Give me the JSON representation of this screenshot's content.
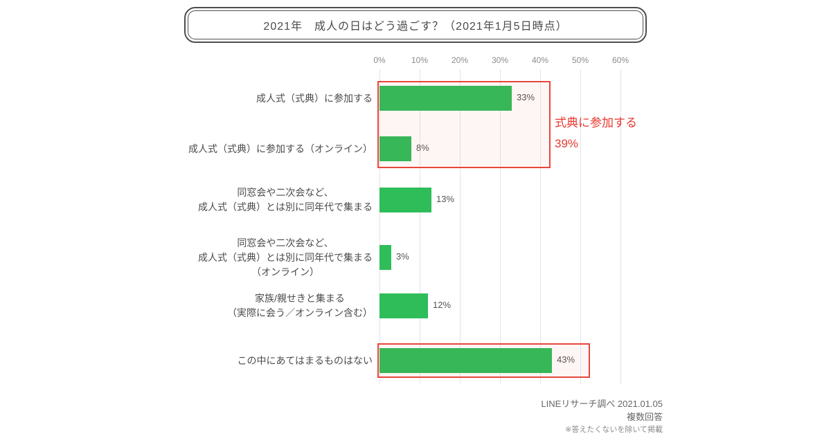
{
  "title": "2021年　成人の日はどう過ごす？（2021年1月5日時点）",
  "chart_data": {
    "type": "bar",
    "orientation": "horizontal",
    "title": "2021年　成人の日はどう過ごす？（2021年1月5日時点）",
    "categories": [
      [
        "成人式（式典）に参加する"
      ],
      [
        "成人式（式典）に参加する（オンライン）"
      ],
      [
        "同窓会や二次会など、",
        "成人式（式典）とは別に同年代で集まる"
      ],
      [
        "同窓会や二次会など、",
        "成人式（式典）とは別に同年代で集まる",
        "（オンライン）"
      ],
      [
        "家族/親せきと集まる",
        "（実際に会う／オンライン含む）"
      ],
      [
        "この中にあてはまるものはない"
      ]
    ],
    "values": [
      33,
      8,
      13,
      3,
      12,
      43
    ],
    "value_labels": [
      "33%",
      "8%",
      "13%",
      "3%",
      "12%",
      "43%"
    ],
    "x_ticks": [
      "0%",
      "10%",
      "20%",
      "30%",
      "40%",
      "50%",
      "60%"
    ],
    "xlim": [
      0,
      60
    ],
    "grid": true,
    "legend": "none",
    "bar_color": "#2EBD59",
    "highlight_color": "#E8392F",
    "highlights": [
      {
        "rows": [
          0,
          1
        ],
        "combined_label": "式典に参加する",
        "combined_value": "39%"
      },
      {
        "rows": [
          5
        ]
      }
    ]
  },
  "footer": {
    "source": "LINEリサーチ調べ 2021.01.05",
    "note_multi": "複数回答",
    "note_exclude": "※答えたくないを除いて掲載"
  }
}
